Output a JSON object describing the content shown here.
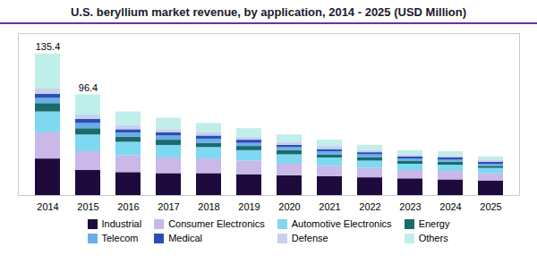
{
  "chart_data": {
    "type": "bar",
    "stacked": true,
    "title": "U.S. beryllium market revenue, by application, 2014 - 2025 (USD Million)",
    "categories": [
      "2014",
      "2015",
      "2016",
      "2017",
      "2018",
      "2019",
      "2020",
      "2021",
      "2022",
      "2023",
      "2024",
      "2025"
    ],
    "series": [
      {
        "name": "Industrial",
        "color": "#1e0a3c",
        "values": [
          35,
          24,
          22,
          21,
          21,
          20,
          19,
          18,
          17,
          16,
          15,
          14
        ]
      },
      {
        "name": "Consumer Electronics",
        "color": "#c9b8e8",
        "values": [
          25,
          18,
          16,
          15,
          14,
          13,
          11,
          10,
          9,
          8,
          8,
          7
        ]
      },
      {
        "name": "Automotive Electronics",
        "color": "#7ed8f0",
        "values": [
          20,
          16,
          13,
          12,
          11,
          10,
          9,
          8,
          7,
          6,
          6,
          5
        ]
      },
      {
        "name": "Energy",
        "color": "#1a6b6b",
        "values": [
          8,
          6,
          5,
          5,
          4,
          4,
          4,
          3,
          3,
          3,
          3,
          2
        ]
      },
      {
        "name": "Telecom",
        "color": "#6aaee8",
        "values": [
          5,
          5,
          4,
          4,
          4,
          3,
          3,
          3,
          3,
          2,
          2,
          2
        ]
      },
      {
        "name": "Medical",
        "color": "#2b4db8",
        "values": [
          4,
          4,
          3,
          3,
          3,
          3,
          2,
          2,
          2,
          2,
          2,
          2
        ]
      },
      {
        "name": "Defense",
        "color": "#c8d0ee",
        "values": [
          5,
          4,
          4,
          3,
          3,
          3,
          3,
          3,
          2,
          2,
          2,
          2
        ]
      },
      {
        "name": "Others",
        "color": "#c0eee8",
        "values": [
          33.4,
          19.4,
          13,
          11,
          9,
          8,
          7,
          6,
          5,
          4,
          4,
          3
        ]
      }
    ],
    "annotations": [
      {
        "x": "2014",
        "text": "135.4"
      },
      {
        "x": "2015",
        "text": "96.4"
      }
    ],
    "ylim": [
      0,
      155
    ],
    "tick_labels": "x",
    "legend": "bottom"
  }
}
